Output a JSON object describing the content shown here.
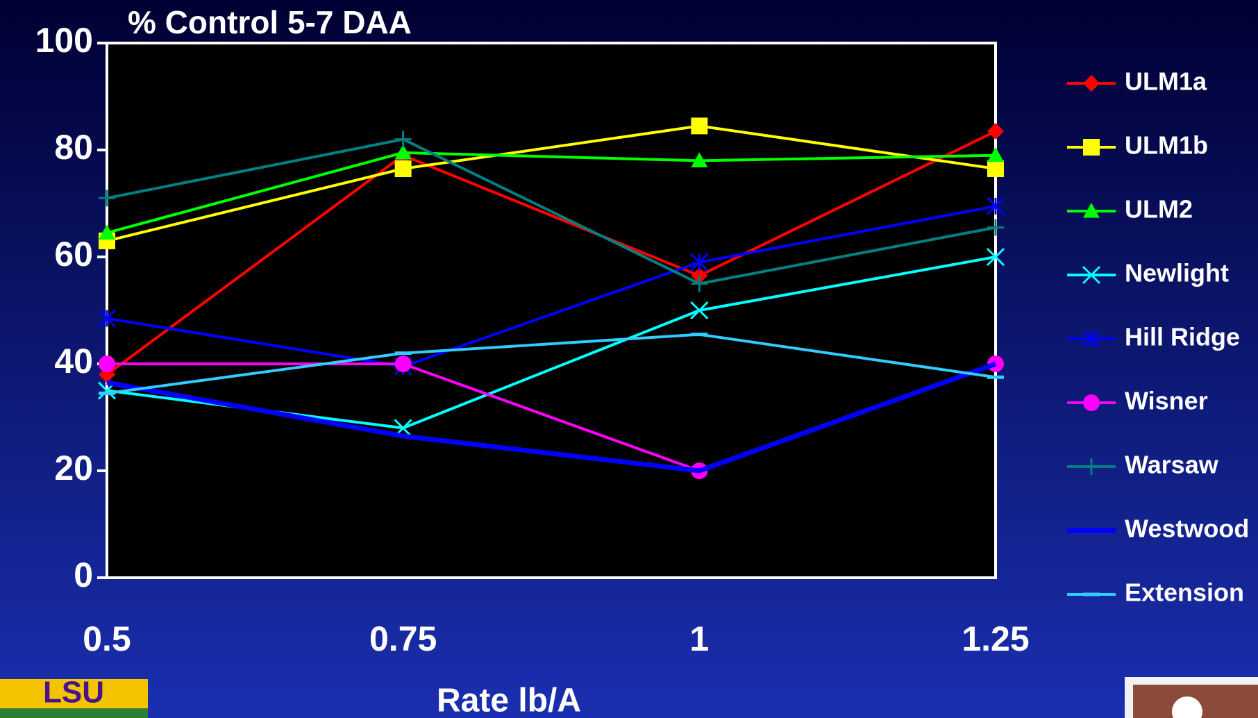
{
  "chart_data": {
    "type": "line",
    "title": "% Control 5-7 DAA",
    "x_label": "Rate lb/A",
    "x": [
      0.5,
      0.75,
      1,
      1.25
    ],
    "xlim": [
      0.5,
      1.25
    ],
    "xticks": [
      0.5,
      0.75,
      1,
      1.25
    ],
    "ylim": [
      0,
      100
    ],
    "yticks": [
      0,
      20,
      40,
      60,
      80,
      100
    ],
    "grid": false,
    "legend": "right",
    "series": [
      {
        "name": "ULM1a",
        "color": "#ff0000",
        "marker": "diamond",
        "values": [
          38,
          79,
          56.5,
          83.5
        ]
      },
      {
        "name": "ULM1b",
        "color": "#ffff00",
        "marker": "square",
        "values": [
          63,
          76.5,
          84.5,
          76.5
        ]
      },
      {
        "name": "ULM2",
        "color": "#00ff00",
        "marker": "triangle",
        "values": [
          64.5,
          79.5,
          78,
          79
        ]
      },
      {
        "name": "Newlight",
        "color": "#00ffff",
        "marker": "x",
        "values": [
          35,
          28,
          50,
          60
        ]
      },
      {
        "name": "Hill Ridge",
        "color": "#0000ff",
        "marker": "star",
        "values": [
          48.5,
          39.5,
          59,
          69.5
        ]
      },
      {
        "name": "Wisner",
        "color": "#ff00ff",
        "marker": "circle",
        "values": [
          40,
          40,
          20,
          40
        ]
      },
      {
        "name": "Warsaw",
        "color": "#008080",
        "marker": "plus",
        "values": [
          71,
          82,
          55,
          65.5
        ]
      },
      {
        "name": "Westwood",
        "color": "#0000ff",
        "marker": "none",
        "values": [
          36.5,
          26.5,
          20,
          40
        ]
      },
      {
        "name": "Extension",
        "color": "#33ccff",
        "marker": "dash",
        "values": [
          34.5,
          42,
          45.5,
          37.5
        ]
      }
    ]
  },
  "logo_left": "LSU"
}
